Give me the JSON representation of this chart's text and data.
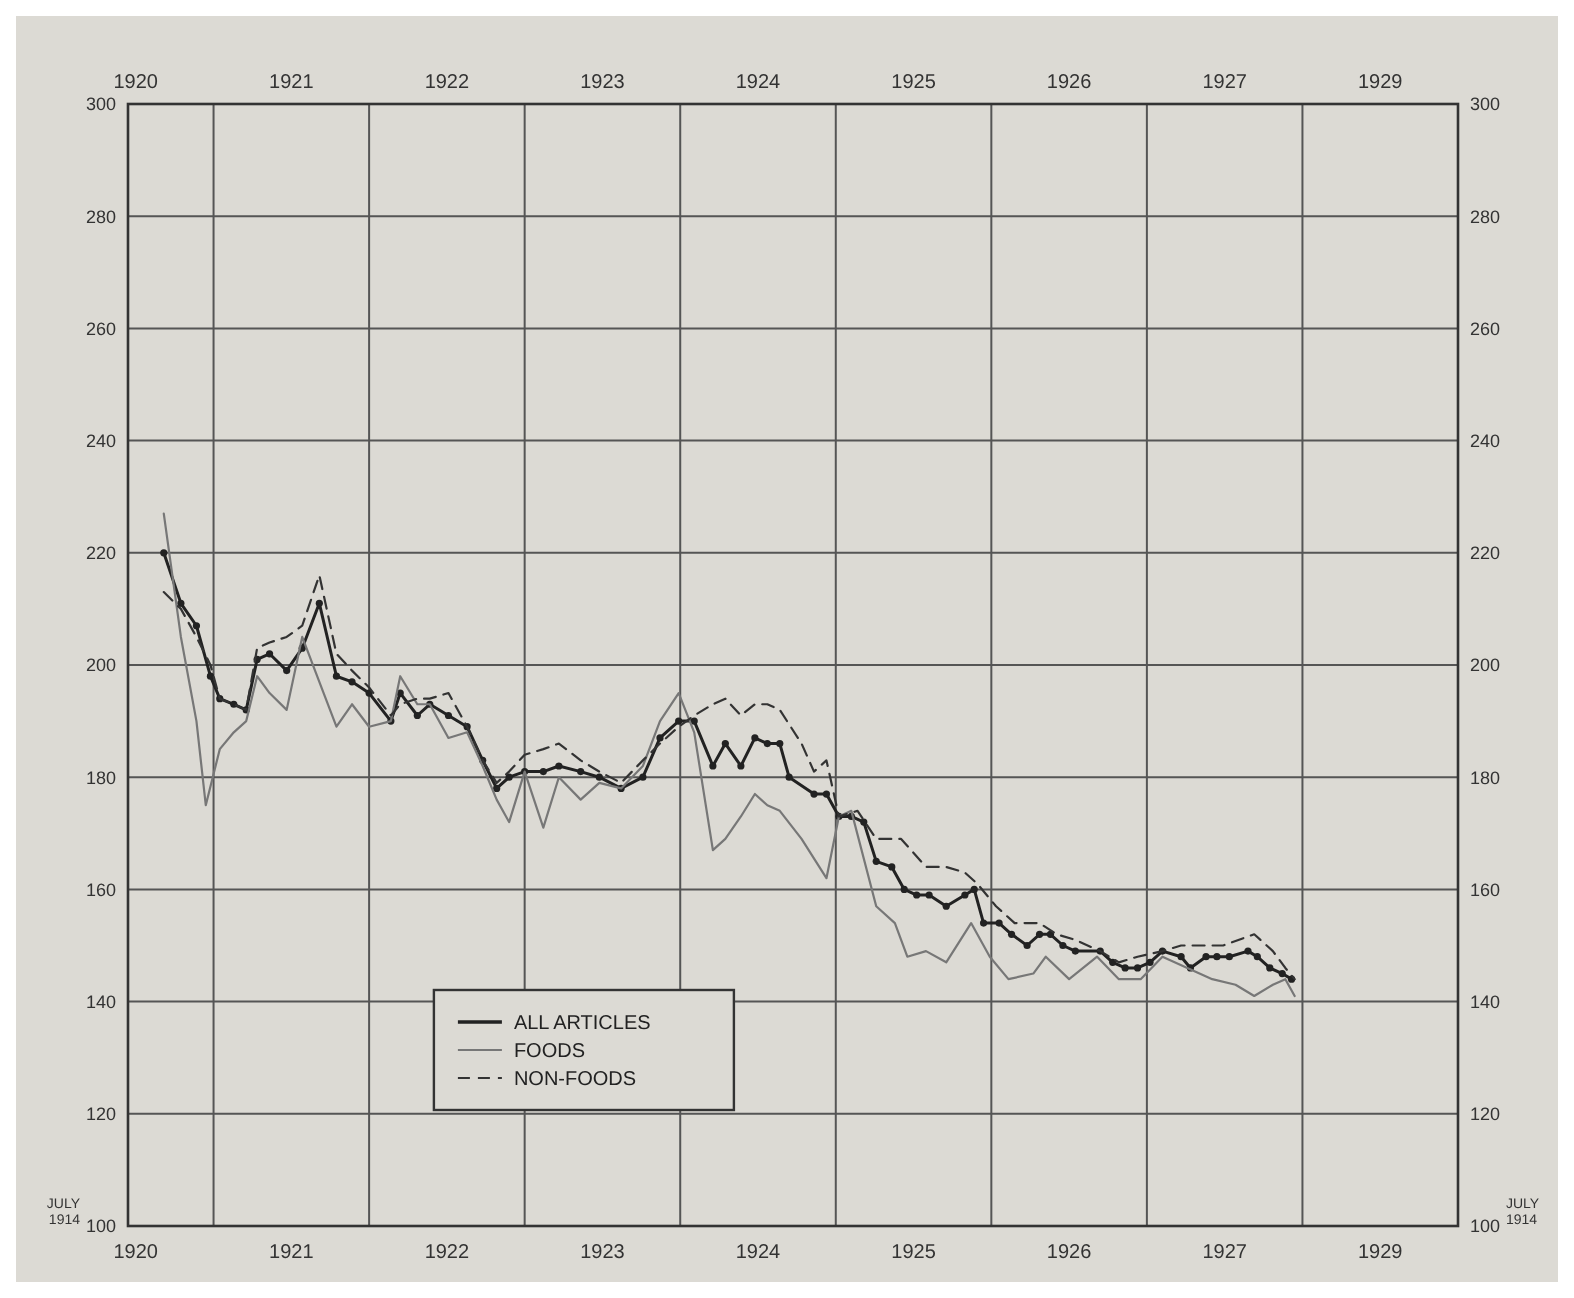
{
  "chart_data": {
    "type": "line",
    "xlim": [
      1920.45,
      1929
    ],
    "xticks": [
      {
        "value": 1920.5,
        "label": "1920"
      },
      {
        "value": 1921,
        "label": null
      },
      {
        "value": 1921.5,
        "label": "1921"
      },
      {
        "value": 1922,
        "label": null
      },
      {
        "value": 1922.5,
        "label": "1922"
      },
      {
        "value": 1923,
        "label": null
      },
      {
        "value": 1923.5,
        "label": "1923"
      },
      {
        "value": 1924,
        "label": null
      },
      {
        "value": 1924.5,
        "label": "1924"
      },
      {
        "value": 1925,
        "label": null
      },
      {
        "value": 1925.5,
        "label": "1925"
      },
      {
        "value": 1926,
        "label": null
      },
      {
        "value": 1926.5,
        "label": "1926"
      },
      {
        "value": 1927,
        "label": null
      },
      {
        "value": 1927.5,
        "label": "1927"
      },
      {
        "value": 1928,
        "label": null
      },
      {
        "value": 1928.5,
        "label": "1929"
      }
    ],
    "x2lim": [
      1920.45,
      1929
    ],
    "x2ticks": [
      {
        "value": 1920.5,
        "label": "1920"
      },
      {
        "value": 1921.5,
        "label": "1921"
      },
      {
        "value": 1922.5,
        "label": "1922"
      },
      {
        "value": 1923.5,
        "label": "1923"
      },
      {
        "value": 1924.5,
        "label": "1924"
      },
      {
        "value": 1925.5,
        "label": "1925"
      },
      {
        "value": 1926.5,
        "label": "1926"
      },
      {
        "value": 1927.5,
        "label": "1927"
      },
      {
        "value": 1928.5,
        "label": "1929"
      }
    ],
    "ylim": [
      100,
      300
    ],
    "yticks": [
      100,
      120,
      140,
      160,
      180,
      200,
      220,
      240,
      260,
      280,
      300
    ],
    "y2lim": [
      100,
      300
    ],
    "y2ticks": [
      100,
      120,
      140,
      160,
      180,
      200,
      220,
      240,
      260,
      280,
      300
    ],
    "grid": true,
    "legend": "bottom left",
    "annotations": [
      "JULY 1914",
      "JULY 1914"
    ],
    "series": [
      {
        "name": "ALL ARTICLES",
        "color": "#222222",
        "marker": "circle",
        "line_style": "solid",
        "x": [
          1920.68,
          1920.79,
          1920.89,
          1920.98,
          1921.04,
          1921.13,
          1921.21,
          1921.28,
          1921.36,
          1921.47,
          1921.57,
          1921.68,
          1921.79,
          1921.89,
          1922.0,
          1922.14,
          1922.2,
          1922.31,
          1922.39,
          1922.51,
          1922.63,
          1922.73,
          1922.82,
          1922.9,
          1923.0,
          1923.12,
          1923.22,
          1923.36,
          1923.48,
          1923.62,
          1923.76,
          1923.87,
          1923.99,
          1924.09,
          1924.21,
          1924.29,
          1924.39,
          1924.48,
          1924.56,
          1924.64,
          1924.7,
          1924.86,
          1924.94,
          1925.02,
          1925.1,
          1925.18,
          1925.26,
          1925.36,
          1925.44,
          1925.52,
          1925.6,
          1925.71,
          1925.83,
          1925.89,
          1925.95,
          1926.05,
          1926.13,
          1926.23,
          1926.31,
          1926.38,
          1926.46,
          1926.54,
          1926.7,
          1926.78,
          1926.86,
          1926.94,
          1927.02,
          1927.1,
          1927.22,
          1927.28,
          1927.38,
          1927.45,
          1927.53,
          1927.65,
          1927.71,
          1927.79,
          1927.87,
          1927.93
        ],
        "values": [
          220,
          211,
          207,
          198,
          194,
          193,
          192,
          201,
          202,
          199,
          203,
          211,
          198,
          197,
          195,
          190,
          195,
          191,
          193,
          191,
          189,
          183,
          178,
          180,
          181,
          181,
          182,
          181,
          180,
          178,
          180,
          187,
          190,
          190,
          182,
          186,
          182,
          187,
          186,
          186,
          180,
          177,
          177,
          173,
          173,
          172,
          165,
          164,
          160,
          159,
          159,
          157,
          159,
          160,
          154,
          154,
          152,
          150,
          152,
          152,
          150,
          149,
          149,
          147,
          146,
          146,
          147,
          149,
          148,
          146,
          148,
          148,
          148,
          149,
          148,
          146,
          145,
          144
        ]
      },
      {
        "name": "FOODS",
        "color": "#777777",
        "marker": "none",
        "line_style": "solid",
        "x": [
          1920.68,
          1920.79,
          1920.89,
          1920.95,
          1921.04,
          1921.13,
          1921.21,
          1921.28,
          1921.36,
          1921.47,
          1921.57,
          1921.68,
          1921.79,
          1921.89,
          1922.0,
          1922.14,
          1922.2,
          1922.31,
          1922.39,
          1922.51,
          1922.63,
          1922.73,
          1922.82,
          1922.9,
          1923.0,
          1923.12,
          1923.22,
          1923.36,
          1923.48,
          1923.62,
          1923.76,
          1923.87,
          1923.99,
          1924.09,
          1924.21,
          1924.29,
          1924.39,
          1924.48,
          1924.56,
          1924.64,
          1924.78,
          1924.94,
          1925.02,
          1925.1,
          1925.26,
          1925.38,
          1925.46,
          1925.58,
          1925.71,
          1925.87,
          1925.99,
          1926.11,
          1926.27,
          1926.35,
          1926.5,
          1926.68,
          1926.82,
          1926.96,
          1927.1,
          1927.26,
          1927.42,
          1927.57,
          1927.69,
          1927.81,
          1927.89,
          1927.95
        ],
        "values": [
          227,
          205,
          190,
          175,
          185,
          188,
          190,
          198,
          195,
          192,
          205,
          197,
          189,
          193,
          189,
          190,
          198,
          193,
          193,
          187,
          188,
          182,
          176,
          172,
          181,
          171,
          180,
          176,
          179,
          178,
          182,
          190,
          195,
          188,
          167,
          169,
          173,
          177,
          175,
          174,
          169,
          162,
          173,
          174,
          157,
          154,
          148,
          149,
          147,
          154,
          148,
          144,
          145,
          148,
          144,
          148,
          144,
          144,
          148,
          146,
          144,
          143,
          141,
          143,
          144,
          141
        ]
      },
      {
        "name": "NON-FOODS",
        "color": "#333333",
        "marker": "none",
        "line_style": "dashed",
        "x": [
          1920.68,
          1920.79,
          1920.89,
          1920.98,
          1921.04,
          1921.13,
          1921.21,
          1921.28,
          1921.36,
          1921.47,
          1921.57,
          1921.68,
          1921.79,
          1921.89,
          1922.0,
          1922.14,
          1922.2,
          1922.31,
          1922.39,
          1922.51,
          1922.63,
          1922.73,
          1922.82,
          1922.9,
          1923.0,
          1923.12,
          1923.22,
          1923.36,
          1923.48,
          1923.62,
          1923.76,
          1923.87,
          1923.99,
          1924.09,
          1924.21,
          1924.29,
          1924.39,
          1924.48,
          1924.56,
          1924.64,
          1924.78,
          1924.86,
          1924.94,
          1925.02,
          1925.14,
          1925.26,
          1925.42,
          1925.58,
          1925.71,
          1925.83,
          1925.91,
          1926.03,
          1926.15,
          1926.31,
          1926.42,
          1926.54,
          1926.7,
          1926.82,
          1926.94,
          1927.1,
          1927.22,
          1927.38,
          1927.49,
          1927.69,
          1927.81,
          1927.89,
          1927.95
        ],
        "values": [
          213,
          210,
          205,
          200,
          194,
          193,
          192,
          203,
          204,
          205,
          207,
          216,
          202,
          199,
          196,
          191,
          193,
          194,
          194,
          195,
          189,
          183,
          179,
          181,
          184,
          185,
          186,
          183,
          181,
          179,
          183,
          186,
          189,
          191,
          193,
          194,
          191,
          193,
          193,
          192,
          186,
          181,
          183,
          173,
          174,
          169,
          169,
          164,
          164,
          163,
          161,
          157,
          154,
          154,
          152,
          151,
          149,
          147,
          148,
          149,
          150,
          150,
          150,
          152,
          149,
          146,
          144
        ]
      }
    ]
  }
}
